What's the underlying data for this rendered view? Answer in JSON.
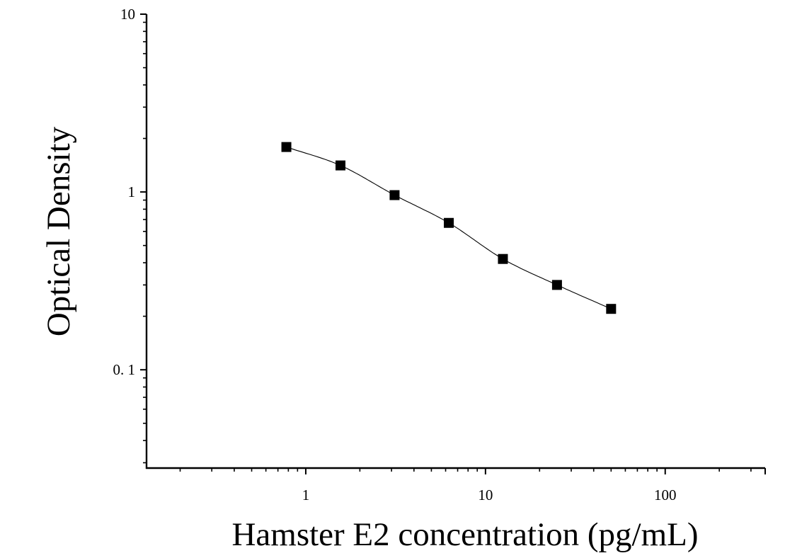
{
  "chart_data": {
    "type": "scatter",
    "xlabel": "Hamster E2 concentration (pg/mL)",
    "ylabel": "Optical Density",
    "xscale": "log",
    "yscale": "log",
    "xlim": [
      0.13,
      360
    ],
    "ylim": [
      0.028,
      10
    ],
    "xticks": [
      {
        "value": 1,
        "label": "1"
      },
      {
        "value": 10,
        "label": "10"
      },
      {
        "value": 100,
        "label": "100"
      }
    ],
    "yticks": [
      {
        "value": 0.1,
        "label": "0. 1"
      },
      {
        "value": 1,
        "label": "1"
      },
      {
        "value": 10,
        "label": "10"
      }
    ],
    "grid": false,
    "series": [
      {
        "marker": "square",
        "color": "#000000",
        "x": [
          0.78,
          1.56,
          3.12,
          6.25,
          12.5,
          25,
          50
        ],
        "y": [
          1.79,
          1.41,
          0.96,
          0.67,
          0.42,
          0.3,
          0.22
        ]
      }
    ],
    "fit_curve": true
  }
}
